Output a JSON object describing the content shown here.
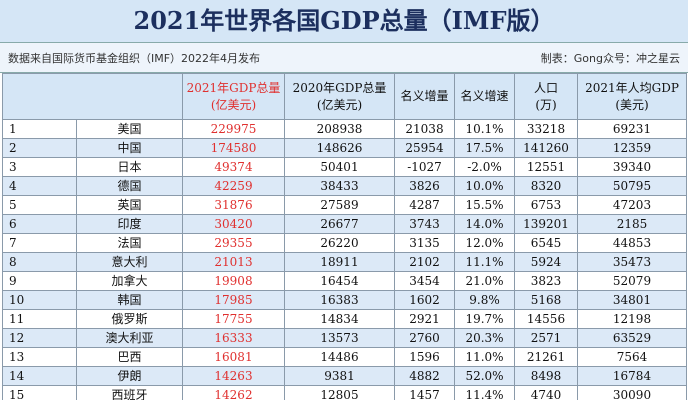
{
  "header": {
    "title": "2021年世界各国GDP总量（IMF版）",
    "source": "数据来自国际货币基金组织（IMF）2022年4月发布",
    "credit": "制表：Gong众号：冲之星云"
  },
  "table": {
    "columns": [
      [
        "2021年GDP总量",
        "(亿美元)"
      ],
      [
        "2020年GDP总量",
        "(亿美元)"
      ],
      [
        "名义增量"
      ],
      [
        "名义增速"
      ],
      [
        "人口",
        "(万)"
      ],
      [
        "2021年人均GDP",
        "(美元)"
      ]
    ],
    "rows": [
      [
        "1",
        "美国",
        "229975",
        "208938",
        "21038",
        "10.1%",
        "33218",
        "69231"
      ],
      [
        "2",
        "中国",
        "174580",
        "148626",
        "25954",
        "17.5%",
        "141260",
        "12359"
      ],
      [
        "3",
        "日本",
        "49374",
        "50401",
        "-1027",
        "-2.0%",
        "12551",
        "39340"
      ],
      [
        "4",
        "德国",
        "42259",
        "38433",
        "3826",
        "10.0%",
        "8320",
        "50795"
      ],
      [
        "5",
        "英国",
        "31876",
        "27589",
        "4287",
        "15.5%",
        "6753",
        "47203"
      ],
      [
        "6",
        "印度",
        "30420",
        "26677",
        "3743",
        "14.0%",
        "139201",
        "2185"
      ],
      [
        "7",
        "法国",
        "29355",
        "26220",
        "3135",
        "12.0%",
        "6545",
        "44853"
      ],
      [
        "8",
        "意大利",
        "21013",
        "18911",
        "2102",
        "11.1%",
        "5924",
        "35473"
      ],
      [
        "9",
        "加拿大",
        "19908",
        "16454",
        "3454",
        "21.0%",
        "3823",
        "52079"
      ],
      [
        "10",
        "韩国",
        "17985",
        "16383",
        "1602",
        "9.8%",
        "5168",
        "34801"
      ],
      [
        "11",
        "俄罗斯",
        "17755",
        "14834",
        "2921",
        "19.7%",
        "14556",
        "12198"
      ],
      [
        "12",
        "澳大利亚",
        "16333",
        "13573",
        "2760",
        "20.3%",
        "2571",
        "63529"
      ],
      [
        "13",
        "巴西",
        "16081",
        "14486",
        "1596",
        "11.0%",
        "21261",
        "7564"
      ],
      [
        "14",
        "伊朗",
        "14263",
        "9381",
        "4882",
        "52.0%",
        "8498",
        "16784"
      ],
      [
        "15",
        "西班牙",
        "14262",
        "12805",
        "1457",
        "11.4%",
        "4740",
        "30090"
      ]
    ]
  }
}
